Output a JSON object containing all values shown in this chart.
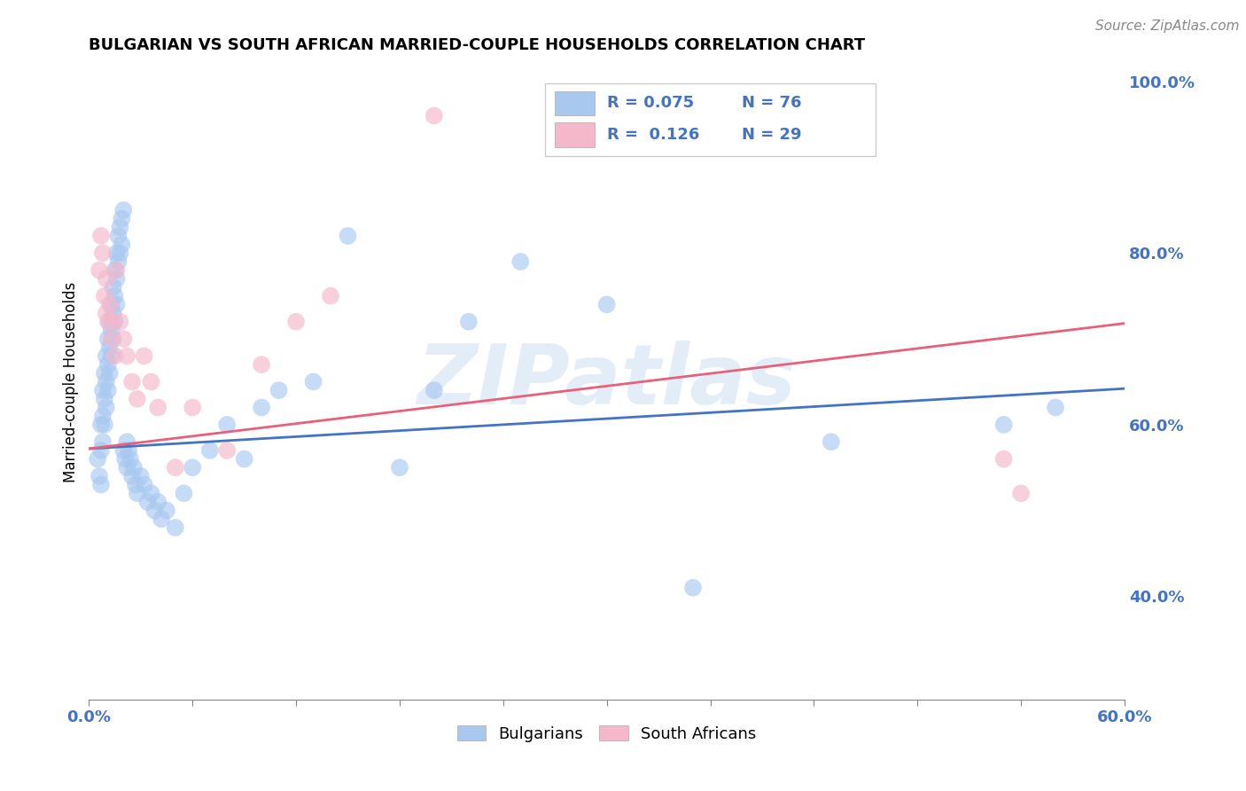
{
  "title": "BULGARIAN VS SOUTH AFRICAN MARRIED-COUPLE HOUSEHOLDS CORRELATION CHART",
  "source": "Source: ZipAtlas.com",
  "ylabel": "Married-couple Households",
  "xmin": 0.0,
  "xmax": 0.6,
  "ymin": 0.28,
  "ymax": 1.02,
  "xticks": [
    0.0,
    0.06,
    0.12,
    0.18,
    0.24,
    0.3,
    0.36,
    0.42,
    0.48,
    0.54,
    0.6
  ],
  "ytick_labels_right": [
    "40.0%",
    "60.0%",
    "80.0%",
    "100.0%"
  ],
  "ytick_vals_right": [
    0.4,
    0.6,
    0.8,
    1.0
  ],
  "blue_color": "#a8c8f0",
  "pink_color": "#f4b8ca",
  "blue_line_color": "#4472c4",
  "pink_line_color": "#e8607a",
  "legend_R_blue": "0.075",
  "legend_N_blue": "76",
  "legend_R_pink": "0.126",
  "legend_N_pink": "29",
  "legend_label_blue": "Bulgarians",
  "legend_label_pink": "South Africans",
  "watermark": "ZIPatlas",
  "blue_line_x0": 0.0,
  "blue_line_x1": 0.6,
  "blue_line_y0": 0.572,
  "blue_line_y1": 0.642,
  "pink_line_x0": 0.0,
  "pink_line_x1": 0.6,
  "pink_line_y0": 0.572,
  "pink_line_y1": 0.718,
  "blue_x": [
    0.005,
    0.006,
    0.007,
    0.007,
    0.007,
    0.008,
    0.008,
    0.008,
    0.009,
    0.009,
    0.009,
    0.01,
    0.01,
    0.01,
    0.011,
    0.011,
    0.011,
    0.012,
    0.012,
    0.012,
    0.013,
    0.013,
    0.013,
    0.014,
    0.014,
    0.014,
    0.015,
    0.015,
    0.015,
    0.016,
    0.016,
    0.016,
    0.017,
    0.017,
    0.018,
    0.018,
    0.019,
    0.019,
    0.02,
    0.02,
    0.021,
    0.022,
    0.022,
    0.023,
    0.024,
    0.025,
    0.026,
    0.027,
    0.028,
    0.03,
    0.032,
    0.034,
    0.036,
    0.038,
    0.04,
    0.042,
    0.045,
    0.05,
    0.055,
    0.06,
    0.07,
    0.08,
    0.09,
    0.1,
    0.11,
    0.13,
    0.15,
    0.18,
    0.2,
    0.22,
    0.25,
    0.3,
    0.35,
    0.43,
    0.53,
    0.56
  ],
  "blue_y": [
    0.56,
    0.54,
    0.6,
    0.57,
    0.53,
    0.64,
    0.61,
    0.58,
    0.66,
    0.63,
    0.6,
    0.68,
    0.65,
    0.62,
    0.7,
    0.67,
    0.64,
    0.72,
    0.69,
    0.66,
    0.74,
    0.71,
    0.68,
    0.76,
    0.73,
    0.7,
    0.78,
    0.75,
    0.72,
    0.8,
    0.77,
    0.74,
    0.82,
    0.79,
    0.83,
    0.8,
    0.84,
    0.81,
    0.85,
    0.57,
    0.56,
    0.58,
    0.55,
    0.57,
    0.56,
    0.54,
    0.55,
    0.53,
    0.52,
    0.54,
    0.53,
    0.51,
    0.52,
    0.5,
    0.51,
    0.49,
    0.5,
    0.48,
    0.52,
    0.55,
    0.57,
    0.6,
    0.56,
    0.62,
    0.64,
    0.65,
    0.82,
    0.55,
    0.64,
    0.72,
    0.79,
    0.74,
    0.41,
    0.58,
    0.6,
    0.62
  ],
  "pink_x": [
    0.006,
    0.007,
    0.008,
    0.009,
    0.01,
    0.01,
    0.011,
    0.012,
    0.013,
    0.014,
    0.015,
    0.016,
    0.018,
    0.02,
    0.022,
    0.025,
    0.028,
    0.032,
    0.036,
    0.04,
    0.05,
    0.06,
    0.08,
    0.1,
    0.12,
    0.14,
    0.2,
    0.53,
    0.54
  ],
  "pink_y": [
    0.78,
    0.82,
    0.8,
    0.75,
    0.77,
    0.73,
    0.72,
    0.74,
    0.7,
    0.72,
    0.68,
    0.78,
    0.72,
    0.7,
    0.68,
    0.65,
    0.63,
    0.68,
    0.65,
    0.62,
    0.55,
    0.62,
    0.57,
    0.67,
    0.72,
    0.75,
    0.96,
    0.56,
    0.52
  ]
}
